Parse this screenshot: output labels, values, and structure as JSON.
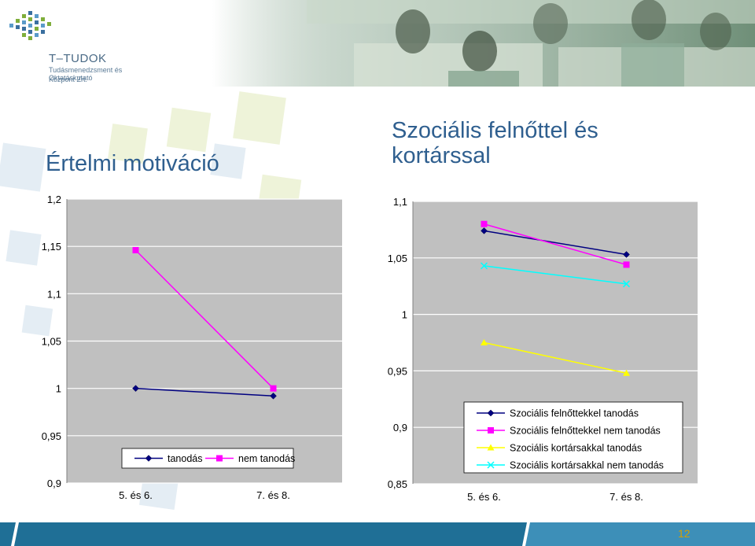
{
  "logo": {
    "name": "T–TUDOK",
    "subtitle_line1": "Tudásmenedzsment és Oktatáskutató",
    "subtitle_line2": "Központ Zrt."
  },
  "colors": {
    "title": "#2f5f8f",
    "plot_bg": "#c0c0c0",
    "footer": "#1f6f96",
    "page_number": "#d4a000"
  },
  "page_number": "12",
  "chart_data": [
    {
      "type": "line",
      "title": "Értelmi motiváció",
      "categories": [
        "5. és 6.",
        "7. és 8."
      ],
      "ylim": [
        0.9,
        1.2
      ],
      "yticks": [
        "1,2",
        "1,15",
        "1,1",
        "1,05",
        "1",
        "0,95",
        "0,9"
      ],
      "grid": true,
      "legend_position": "bottom-inside",
      "series": [
        {
          "name": "tanodás",
          "values": [
            1.0,
            0.992
          ],
          "color": "#000080",
          "marker": "diamond"
        },
        {
          "name": "nem tanodás",
          "values": [
            1.146,
            1.0
          ],
          "color": "#ff00ff",
          "marker": "square"
        }
      ]
    },
    {
      "type": "line",
      "title": "Szociális felnőttel és kortárssal",
      "categories": [
        "5. és 6.",
        "7. és 8."
      ],
      "ylim": [
        0.85,
        1.1
      ],
      "yticks": [
        "1,1",
        "1,05",
        "1",
        "0,95",
        "0,9",
        "0,85"
      ],
      "grid": true,
      "legend_position": "bottom-right-inside",
      "series": [
        {
          "name": "Szociális felnőttekkel tanodás",
          "values": [
            1.074,
            1.053
          ],
          "color": "#000080",
          "marker": "diamond"
        },
        {
          "name": "Szociális felnőttekkel nem tanodás",
          "values": [
            1.08,
            1.044
          ],
          "color": "#ff00ff",
          "marker": "square"
        },
        {
          "name": "Szociális kortársakkal tanodás",
          "values": [
            0.975,
            0.948
          ],
          "color": "#ffff00",
          "marker": "triangle"
        },
        {
          "name": "Szociális kortársakkal nem tanodás",
          "values": [
            1.043,
            1.027
          ],
          "color": "#00ffff",
          "marker": "x"
        }
      ]
    }
  ]
}
